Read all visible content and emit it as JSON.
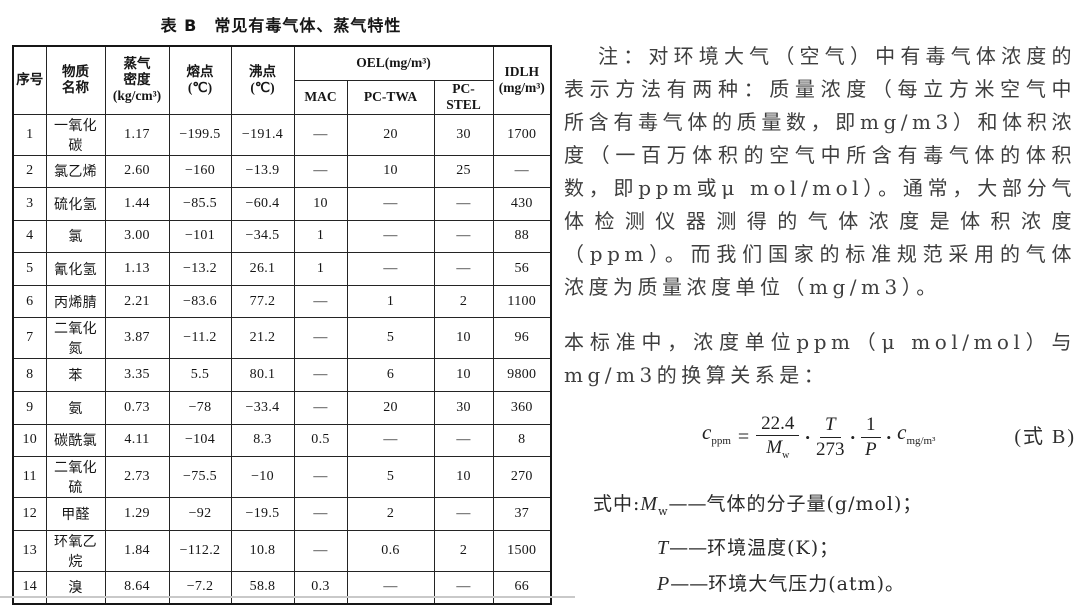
{
  "table": {
    "title": "表 B　常见有毒气体、蒸气特性",
    "headers": {
      "no": "序号",
      "name": "物质\n名称",
      "density": "蒸气\n密度\n(kg/cm³)",
      "melting": "熔点\n(℃)",
      "boiling": "沸点\n(℃)",
      "oel": "OEL(mg/m³)",
      "mac": "MAC",
      "twa": "PC-TWA",
      "stel": "PC-STEL",
      "idlh": "IDLH\n(mg/m³)"
    },
    "column_keys": [
      "no",
      "name",
      "density",
      "melting",
      "boiling",
      "mac",
      "twa",
      "stel",
      "idlh"
    ],
    "rows": [
      {
        "no": "1",
        "name": "一氧化碳",
        "density": "1.17",
        "melting": "−199.5",
        "boiling": "−191.4",
        "mac": "—",
        "twa": "20",
        "stel": "30",
        "idlh": "1700"
      },
      {
        "no": "2",
        "name": "氯乙烯",
        "density": "2.60",
        "melting": "−160",
        "boiling": "−13.9",
        "mac": "—",
        "twa": "10",
        "stel": "25",
        "idlh": "—"
      },
      {
        "no": "3",
        "name": "硫化氢",
        "density": "1.44",
        "melting": "−85.5",
        "boiling": "−60.4",
        "mac": "10",
        "twa": "—",
        "stel": "—",
        "idlh": "430"
      },
      {
        "no": "4",
        "name": "氯",
        "density": "3.00",
        "melting": "−101",
        "boiling": "−34.5",
        "mac": "1",
        "twa": "—",
        "stel": "—",
        "idlh": "88"
      },
      {
        "no": "5",
        "name": "氰化氢",
        "density": "1.13",
        "melting": "−13.2",
        "boiling": "26.1",
        "mac": "1",
        "twa": "—",
        "stel": "—",
        "idlh": "56"
      },
      {
        "no": "6",
        "name": "丙烯腈",
        "density": "2.21",
        "melting": "−83.6",
        "boiling": "77.2",
        "mac": "—",
        "twa": "1",
        "stel": "2",
        "idlh": "1100"
      },
      {
        "no": "7",
        "name": "二氧化氮",
        "density": "3.87",
        "melting": "−11.2",
        "boiling": "21.2",
        "mac": "—",
        "twa": "5",
        "stel": "10",
        "idlh": "96"
      },
      {
        "no": "8",
        "name": "苯",
        "density": "3.35",
        "melting": "5.5",
        "boiling": "80.1",
        "mac": "—",
        "twa": "6",
        "stel": "10",
        "idlh": "9800"
      },
      {
        "no": "9",
        "name": "氨",
        "density": "0.73",
        "melting": "−78",
        "boiling": "−33.4",
        "mac": "—",
        "twa": "20",
        "stel": "30",
        "idlh": "360"
      },
      {
        "no": "10",
        "name": "碳酰氯",
        "density": "4.11",
        "melting": "−104",
        "boiling": "8.3",
        "mac": "0.5",
        "twa": "—",
        "stel": "—",
        "idlh": "8"
      },
      {
        "no": "11",
        "name": "二氧化硫",
        "density": "2.73",
        "melting": "−75.5",
        "boiling": "−10",
        "mac": "—",
        "twa": "5",
        "stel": "10",
        "idlh": "270"
      },
      {
        "no": "12",
        "name": "甲醛",
        "density": "1.29",
        "melting": "−92",
        "boiling": "−19.5",
        "mac": "—",
        "twa": "2",
        "stel": "—",
        "idlh": "37"
      },
      {
        "no": "13",
        "name": "环氧乙烷",
        "density": "1.84",
        "melting": "−112.2",
        "boiling": "10.8",
        "mac": "—",
        "twa": "0.6",
        "stel": "2",
        "idlh": "1500"
      },
      {
        "no": "14",
        "name": "溴",
        "density": "8.64",
        "melting": "−7.2",
        "boiling": "58.8",
        "mac": "0.3",
        "twa": "—",
        "stel": "—",
        "idlh": "66"
      }
    ]
  },
  "note": {
    "paragraph1": "注：对环境大气（空气）中有毒气体浓度的表示方法有两种：质量浓度（每立方米空气中所含有毒气体的质量数，即mg/m3）和体积浓度（一百万体积的空气中所含有毒气体的体积数，即ppm或μ mol/mol）。通常，大部分气体检测仪器测得的气体浓度是体积浓度（ppm）。而我们国家的标准规范采用的气体浓度为质量浓度单位（mg/m3）。",
    "paragraph2": "本标准中，浓度单位ppm（μ mol/mol）与mg/m3的换算关系是："
  },
  "formula": {
    "lhs_base": "c",
    "lhs_sub": "ppm",
    "equals": "=",
    "frac1_num": "22.4",
    "frac1_den_base": "M",
    "frac1_den_sub": "w",
    "dot": "•",
    "frac2_num": "T",
    "frac2_den": "273",
    "frac3_num": "1",
    "frac3_den": "P",
    "rhs_base": "c",
    "rhs_sub": "mg/m³",
    "label": "(式 B)"
  },
  "defs": {
    "intro": "式中:",
    "items": [
      {
        "symbol_base": "M",
        "symbol_sub": "w",
        "dash": "——",
        "desc": "气体的分子量(g/mol)；"
      },
      {
        "symbol_base": "T",
        "dash": "——",
        "desc": "环境温度(K)；"
      },
      {
        "symbol_base": "P",
        "dash": "——",
        "desc": "环境大气压力(atm)。"
      }
    ]
  }
}
